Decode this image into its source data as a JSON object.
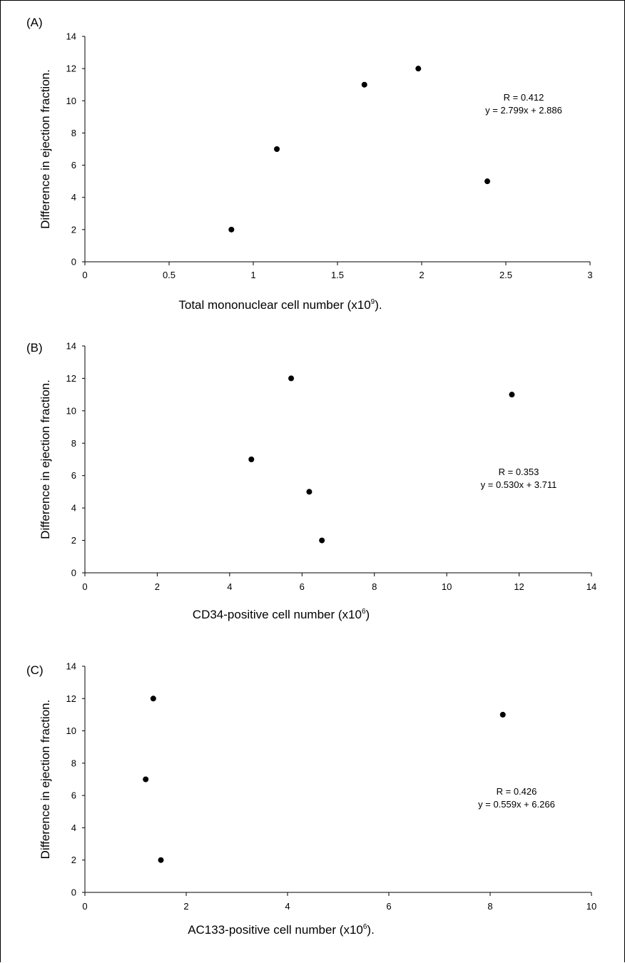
{
  "chart_data": [
    {
      "type": "scatter",
      "panel_label": "(A)",
      "xlabel": "Total mononuclear cell number (x10",
      "xlabel_sup": "9",
      "xlabel_end": ").",
      "ylabel": "Difference in ejection fraction.",
      "xlim": [
        0,
        3
      ],
      "ylim": [
        0,
        14
      ],
      "xticks": [
        0,
        0.5,
        1,
        1.5,
        2,
        2.5,
        3
      ],
      "yticks": [
        0,
        2,
        4,
        6,
        8,
        10,
        12,
        14
      ],
      "points": [
        {
          "x": 0.87,
          "y": 2
        },
        {
          "x": 1.14,
          "y": 7
        },
        {
          "x": 1.66,
          "y": 11
        },
        {
          "x": 1.98,
          "y": 12
        },
        {
          "x": 2.39,
          "y": 5
        }
      ],
      "annotation": [
        "R = 0.412",
        "y = 2.799x + 2.886"
      ],
      "grid": false
    },
    {
      "type": "scatter",
      "panel_label": "(B)",
      "xlabel": "CD34-positive cell number (x10",
      "xlabel_sup": "6",
      "xlabel_end": ")",
      "ylabel": "Difference in ejection fraction.",
      "xlim": [
        0,
        14
      ],
      "ylim": [
        0,
        14
      ],
      "xticks": [
        0,
        2,
        4,
        6,
        8,
        10,
        12,
        14
      ],
      "yticks": [
        0,
        2,
        4,
        6,
        8,
        10,
        12,
        14
      ],
      "points": [
        {
          "x": 4.6,
          "y": 7
        },
        {
          "x": 5.7,
          "y": 12
        },
        {
          "x": 6.2,
          "y": 5
        },
        {
          "x": 6.55,
          "y": 2
        },
        {
          "x": 11.8,
          "y": 11
        }
      ],
      "annotation": [
        "R = 0.353",
        "y = 0.530x + 3.711"
      ],
      "grid": false
    },
    {
      "type": "scatter",
      "panel_label": "(C)",
      "xlabel": "AC133-positive cell number (x10",
      "xlabel_sup": "6",
      "xlabel_end": ").",
      "ylabel": "Difference in ejection fraction.",
      "xlim": [
        0,
        10
      ],
      "ylim": [
        0,
        14
      ],
      "xticks": [
        0,
        2,
        4,
        6,
        8,
        10
      ],
      "yticks": [
        0,
        2,
        4,
        6,
        8,
        10,
        12,
        14
      ],
      "points": [
        {
          "x": 1.2,
          "y": 7
        },
        {
          "x": 1.35,
          "y": 12
        },
        {
          "x": 1.5,
          "y": 2
        },
        {
          "x": 8.25,
          "y": 11
        }
      ],
      "annotation": [
        "R = 0.426",
        "y = 0.559x + 6.266"
      ],
      "grid": false
    }
  ]
}
